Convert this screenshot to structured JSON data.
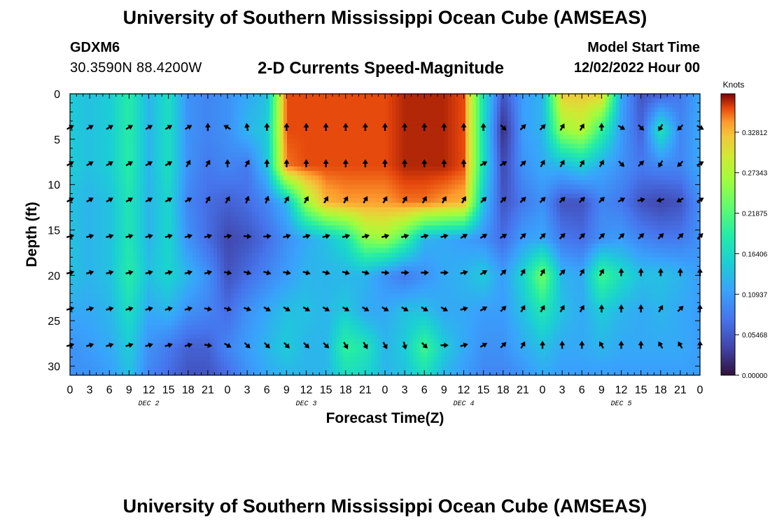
{
  "header": {
    "title": "University of Southern Mississippi Ocean Cube (AMSEAS)",
    "station": "GDXM6",
    "coords": "30.3590N  88.4200W",
    "subtitle": "2-D Currents Speed-Magnitude",
    "model_start_label": "Model Start Time",
    "model_start_value": "12/02/2022 Hour 00",
    "next_panel_title": "University of Southern Mississippi Ocean Cube (AMSEAS)"
  },
  "chart_data": {
    "type": "heatmap",
    "title": "2-D Currents Speed-Magnitude",
    "xlabel": "Forecast Time(Z)",
    "ylabel": "Depth (ft)",
    "x_ticks": [
      "0",
      "3",
      "6",
      "9",
      "12",
      "15",
      "18",
      "21",
      "0",
      "3",
      "6",
      "9",
      "12",
      "15",
      "18",
      "21",
      "0",
      "3",
      "6",
      "9",
      "12",
      "15",
      "18",
      "21",
      "0",
      "3",
      "6",
      "9",
      "12",
      "15",
      "18",
      "21",
      "0"
    ],
    "day_labels": [
      "DEC 2",
      "DEC 3",
      "DEC 4",
      "DEC 5"
    ],
    "y_ticks": [
      0,
      5,
      10,
      15,
      20,
      25,
      30
    ],
    "ylim": [
      0,
      31
    ],
    "x_range_hours": [
      0,
      96
    ],
    "colorbar": {
      "label": "Knots",
      "ticks": [
        "0.32812",
        "0.27343",
        "0.21875",
        "0.16406",
        "0.10937",
        "0.05468",
        "0.00000"
      ],
      "range": [
        0,
        0.38
      ]
    },
    "grid": {
      "depths_ft": [
        0,
        4,
        8,
        12,
        16,
        20,
        24,
        28,
        31
      ],
      "hours": [
        0,
        3,
        6,
        9,
        12,
        15,
        18,
        21,
        24,
        27,
        30,
        33,
        36,
        39,
        42,
        45,
        48,
        51,
        54,
        57,
        60,
        63,
        66,
        69,
        72,
        75,
        78,
        81,
        84,
        87,
        90,
        93,
        96
      ],
      "speed_knots": [
        [
          0.15,
          0.14,
          0.15,
          0.19,
          0.13,
          0.17,
          0.1,
          0.09,
          0.1,
          0.12,
          0.14,
          0.36,
          0.36,
          0.36,
          0.36,
          0.36,
          0.36,
          0.37,
          0.37,
          0.37,
          0.36,
          0.17,
          0.05,
          0.11,
          0.13,
          0.32,
          0.32,
          0.32,
          0.12,
          0.05,
          0.06,
          0.08,
          0.12
        ],
        [
          0.15,
          0.14,
          0.15,
          0.19,
          0.13,
          0.17,
          0.1,
          0.09,
          0.1,
          0.13,
          0.15,
          0.36,
          0.36,
          0.36,
          0.36,
          0.36,
          0.36,
          0.37,
          0.37,
          0.37,
          0.36,
          0.17,
          0.02,
          0.11,
          0.13,
          0.26,
          0.28,
          0.2,
          0.11,
          0.06,
          0.18,
          0.09,
          0.12
        ],
        [
          0.15,
          0.14,
          0.15,
          0.19,
          0.13,
          0.17,
          0.1,
          0.08,
          0.09,
          0.08,
          0.14,
          0.35,
          0.36,
          0.36,
          0.36,
          0.36,
          0.36,
          0.37,
          0.37,
          0.37,
          0.36,
          0.17,
          0.04,
          0.1,
          0.12,
          0.13,
          0.15,
          0.12,
          0.1,
          0.08,
          0.09,
          0.09,
          0.12
        ],
        [
          0.14,
          0.13,
          0.14,
          0.18,
          0.13,
          0.16,
          0.09,
          0.07,
          0.06,
          0.07,
          0.09,
          0.13,
          0.26,
          0.33,
          0.34,
          0.34,
          0.34,
          0.35,
          0.35,
          0.34,
          0.33,
          0.14,
          0.05,
          0.08,
          0.1,
          0.05,
          0.05,
          0.09,
          0.08,
          0.05,
          0.04,
          0.05,
          0.1
        ],
        [
          0.14,
          0.13,
          0.14,
          0.18,
          0.13,
          0.16,
          0.1,
          0.07,
          0.04,
          0.05,
          0.07,
          0.1,
          0.12,
          0.14,
          0.17,
          0.25,
          0.26,
          0.21,
          0.13,
          0.12,
          0.11,
          0.1,
          0.07,
          0.11,
          0.12,
          0.08,
          0.07,
          0.1,
          0.11,
          0.09,
          0.08,
          0.08,
          0.1
        ],
        [
          0.14,
          0.13,
          0.14,
          0.19,
          0.14,
          0.16,
          0.13,
          0.1,
          0.05,
          0.07,
          0.09,
          0.11,
          0.13,
          0.13,
          0.13,
          0.13,
          0.1,
          0.08,
          0.1,
          0.12,
          0.13,
          0.15,
          0.11,
          0.16,
          0.24,
          0.13,
          0.12,
          0.21,
          0.17,
          0.14,
          0.14,
          0.13,
          0.11
        ],
        [
          0.12,
          0.12,
          0.13,
          0.17,
          0.12,
          0.13,
          0.1,
          0.09,
          0.07,
          0.1,
          0.12,
          0.14,
          0.14,
          0.13,
          0.15,
          0.12,
          0.12,
          0.14,
          0.14,
          0.12,
          0.12,
          0.11,
          0.11,
          0.14,
          0.18,
          0.14,
          0.12,
          0.15,
          0.13,
          0.12,
          0.13,
          0.12,
          0.11
        ],
        [
          0.1,
          0.11,
          0.12,
          0.15,
          0.1,
          0.08,
          0.06,
          0.06,
          0.09,
          0.11,
          0.13,
          0.15,
          0.13,
          0.13,
          0.2,
          0.18,
          0.13,
          0.15,
          0.21,
          0.15,
          0.12,
          0.1,
          0.1,
          0.12,
          0.14,
          0.12,
          0.12,
          0.13,
          0.12,
          0.12,
          0.12,
          0.12,
          0.11
        ],
        [
          0.1,
          0.1,
          0.11,
          0.14,
          0.09,
          0.07,
          0.05,
          0.05,
          0.07,
          0.1,
          0.12,
          0.13,
          0.13,
          0.13,
          0.17,
          0.16,
          0.13,
          0.14,
          0.17,
          0.13,
          0.11,
          0.09,
          0.09,
          0.1,
          0.12,
          0.11,
          0.11,
          0.11,
          0.11,
          0.11,
          0.11,
          0.11,
          0.11
        ]
      ],
      "arrow_depths_ft": [
        3.7,
        7.7,
        11.7,
        15.7,
        19.7,
        23.7,
        27.7
      ],
      "arrow_hours": [
        0,
        3,
        6,
        9,
        12,
        15,
        18,
        21,
        24,
        27,
        30,
        33,
        36,
        39,
        42,
        45,
        48,
        51,
        54,
        57,
        60,
        63,
        66,
        69,
        72,
        75,
        78,
        81,
        84,
        87,
        90,
        93,
        96
      ],
      "arrow_dir_deg": [
        [
          60,
          60,
          60,
          60,
          60,
          60,
          60,
          0,
          300,
          350,
          0,
          0,
          0,
          0,
          0,
          0,
          0,
          0,
          0,
          0,
          0,
          0,
          135,
          45,
          45,
          30,
          30,
          0,
          120,
          135,
          210,
          225,
          120
        ],
        [
          60,
          60,
          60,
          60,
          60,
          60,
          30,
          30,
          0,
          30,
          0,
          0,
          0,
          0,
          0,
          0,
          0,
          0,
          0,
          0,
          0,
          60,
          60,
          45,
          30,
          30,
          30,
          30,
          135,
          45,
          210,
          225,
          60
        ],
        [
          60,
          60,
          60,
          60,
          60,
          60,
          60,
          30,
          30,
          20,
          20,
          30,
          30,
          30,
          30,
          30,
          30,
          30,
          30,
          30,
          30,
          45,
          45,
          45,
          45,
          45,
          45,
          45,
          60,
          75,
          255,
          240,
          60
        ],
        [
          75,
          75,
          75,
          75,
          75,
          75,
          75,
          75,
          80,
          95,
          85,
          75,
          75,
          75,
          75,
          75,
          75,
          75,
          75,
          75,
          60,
          60,
          60,
          45,
          45,
          45,
          45,
          45,
          45,
          45,
          45,
          45,
          45
        ],
        [
          75,
          75,
          75,
          75,
          75,
          75,
          75,
          75,
          100,
          105,
          105,
          100,
          105,
          105,
          105,
          105,
          95,
          90,
          90,
          90,
          75,
          60,
          45,
          30,
          30,
          45,
          30,
          30,
          0,
          0,
          0,
          0,
          0
        ],
        [
          75,
          75,
          75,
          75,
          75,
          75,
          75,
          100,
          105,
          110,
          120,
          120,
          120,
          120,
          120,
          120,
          120,
          120,
          120,
          120,
          75,
          60,
          45,
          30,
          30,
          30,
          30,
          0,
          0,
          0,
          30,
          45,
          0
        ],
        [
          75,
          75,
          75,
          75,
          75,
          75,
          75,
          100,
          120,
          135,
          135,
          135,
          135,
          135,
          150,
          150,
          150,
          165,
          135,
          90,
          75,
          60,
          45,
          30,
          0,
          0,
          0,
          330,
          0,
          0,
          330,
          330,
          0
        ]
      ]
    }
  }
}
